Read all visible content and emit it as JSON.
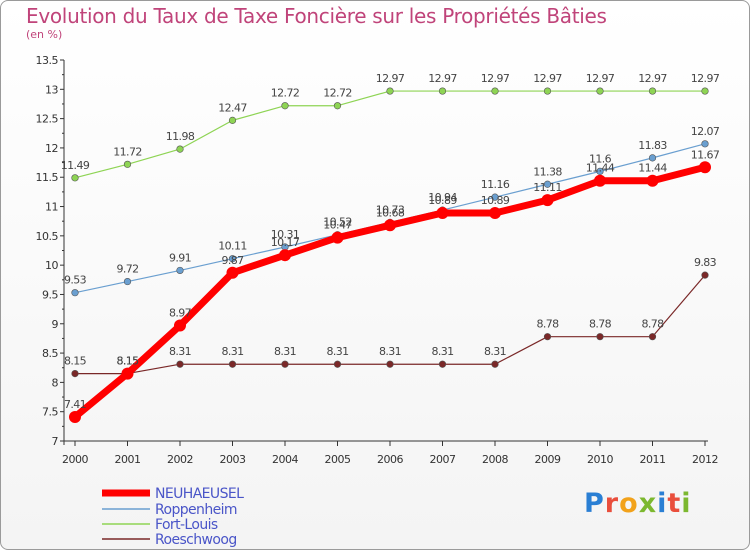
{
  "title": "Evolution du Taux de Taxe Foncière sur les Propriétés Bâties",
  "subtitle": "(en %)",
  "logo": {
    "text": "Proxiti",
    "letters": [
      "P",
      "r",
      "o",
      "x",
      "i",
      "t",
      "i"
    ],
    "colors": [
      "#2a7fd4",
      "#e94e3c",
      "#f2a21b",
      "#7cb82f",
      "#2a7fd4",
      "#e94e3c",
      "#7cb82f"
    ]
  },
  "chart_data": {
    "type": "line",
    "title": "Evolution du Taux de Taxe Foncière sur les Propriétés Bâties",
    "ylabel": "(en %)",
    "xlabel": "",
    "categories": [
      "2000",
      "2001",
      "2002",
      "2003",
      "2004",
      "2005",
      "2006",
      "2007",
      "2008",
      "2009",
      "2010",
      "2011",
      "2012"
    ],
    "ylim": [
      7,
      13.5
    ],
    "yticks": [
      "7",
      "7.5",
      "8",
      "8.5",
      "9",
      "9.5",
      "10",
      "10.5",
      "11",
      "11.5",
      "12",
      "12.5",
      "13",
      "13.5"
    ],
    "grid": false,
    "legend_position": "bottom-left",
    "series": [
      {
        "name": "NEUHAEUSEL",
        "color": "#ff0000",
        "values": [
          7.41,
          8.15,
          8.97,
          9.87,
          10.17,
          10.47,
          10.68,
          10.89,
          10.89,
          11.11,
          11.44,
          11.44,
          11.67
        ],
        "labels": [
          "7.41",
          "8.15",
          "8.97",
          "9.87",
          "10.17",
          "10.47",
          "10.68",
          "10.89",
          "10.89",
          "11.11",
          "11.44",
          "11.44",
          "11.67"
        ]
      },
      {
        "name": "Roppenheim",
        "color": "#6a9fd0",
        "values": [
          9.53,
          9.72,
          9.91,
          10.11,
          10.31,
          10.52,
          10.73,
          10.94,
          11.16,
          11.38,
          11.6,
          11.83,
          12.07
        ],
        "labels": [
          "9.53",
          "9.72",
          "9.91",
          "10.11",
          "10.31",
          "10.52",
          "10.73",
          "10.94",
          "11.16",
          "11.38",
          "11.6",
          "11.83",
          "12.07"
        ]
      },
      {
        "name": "Fort-Louis",
        "color": "#8ed454",
        "values": [
          11.49,
          11.72,
          11.98,
          12.47,
          12.72,
          12.72,
          12.97,
          12.97,
          12.97,
          12.97,
          12.97,
          12.97,
          12.97
        ],
        "labels": [
          "11.49",
          "11.72",
          "11.98",
          "12.47",
          "12.72",
          "12.72",
          "12.97",
          "12.97",
          "12.97",
          "12.97",
          "12.97",
          "12.97",
          "12.97"
        ]
      },
      {
        "name": "Roeschwoog",
        "color": "#7a2828",
        "values": [
          8.15,
          8.15,
          8.31,
          8.31,
          8.31,
          8.31,
          8.31,
          8.31,
          8.31,
          8.78,
          8.78,
          8.78,
          9.83
        ],
        "labels": [
          "8.15",
          "8.15",
          "8.31",
          "8.31",
          "8.31",
          "8.31",
          "8.31",
          "8.31",
          "8.31",
          "8.78",
          "8.78",
          "8.78",
          "9.83"
        ]
      }
    ]
  }
}
